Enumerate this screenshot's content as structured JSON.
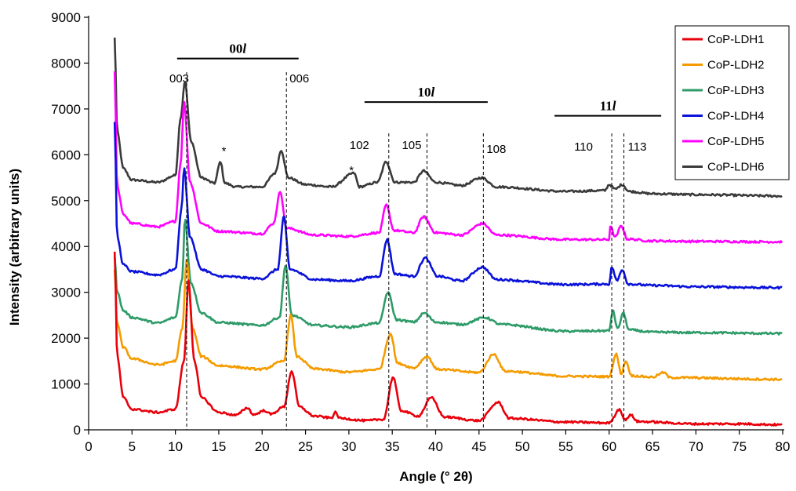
{
  "chart_data": {
    "type": "line",
    "title": "",
    "xlabel": "Angle (° 2θ)",
    "ylabel": "Intensity (arbitrary units)",
    "xlim": [
      0,
      80
    ],
    "ylim": [
      0,
      9000
    ],
    "x_ticks": [
      0,
      5,
      10,
      15,
      20,
      25,
      30,
      35,
      40,
      45,
      50,
      55,
      60,
      65,
      70,
      75,
      80
    ],
    "y_ticks": [
      0,
      1000,
      2000,
      3000,
      4000,
      5000,
      6000,
      7000,
      8000,
      9000
    ],
    "grid": false,
    "legend_position": "top-right",
    "series": [
      {
        "name": "CoP-LDH1",
        "color": "#e8000b",
        "baseline": 350,
        "edge": 3900,
        "points": [
          [
            3,
            3900
          ],
          [
            3.3,
            1600
          ],
          [
            4,
            700
          ],
          [
            5,
            450
          ],
          [
            8,
            380
          ],
          [
            10,
            450
          ],
          [
            11,
            1500
          ],
          [
            11.5,
            3250
          ],
          [
            12.2,
            1500
          ],
          [
            13,
            700
          ],
          [
            15,
            380
          ],
          [
            17,
            320
          ],
          [
            18.3,
            480
          ],
          [
            19,
            330
          ],
          [
            20.3,
            420
          ],
          [
            21,
            340
          ],
          [
            22.5,
            500
          ],
          [
            23.4,
            1280
          ],
          [
            24.3,
            500
          ],
          [
            26,
            300
          ],
          [
            28,
            260
          ],
          [
            28.4,
            380
          ],
          [
            29,
            250
          ],
          [
            32,
            200
          ],
          [
            34,
            230
          ],
          [
            35.1,
            1150
          ],
          [
            36,
            420
          ],
          [
            38,
            300
          ],
          [
            39.5,
            700
          ],
          [
            41,
            280
          ],
          [
            45,
            200
          ],
          [
            47.2,
            600
          ],
          [
            48.5,
            250
          ],
          [
            55,
            170
          ],
          [
            60,
            150
          ],
          [
            61.2,
            450
          ],
          [
            61.8,
            220
          ],
          [
            62.5,
            320
          ],
          [
            63.3,
            180
          ],
          [
            70,
            130
          ],
          [
            75,
            130
          ],
          [
            80,
            110
          ]
        ],
        "spikes": [
          [
            23.5,
            1.0
          ]
        ]
      },
      {
        "name": "CoP-LDH2",
        "color": "#f59b00",
        "baseline": 1420,
        "edge": 3900,
        "points": [
          [
            3,
            3500
          ],
          [
            3.3,
            2300
          ],
          [
            4,
            1800
          ],
          [
            5,
            1550
          ],
          [
            8,
            1420
          ],
          [
            10,
            1500
          ],
          [
            10.8,
            2200
          ],
          [
            11.3,
            3700
          ],
          [
            12,
            2200
          ],
          [
            13,
            1600
          ],
          [
            15,
            1400
          ],
          [
            20,
            1320
          ],
          [
            22.5,
            1500
          ],
          [
            23.3,
            2500
          ],
          [
            24,
            1600
          ],
          [
            26,
            1330
          ],
          [
            30,
            1260
          ],
          [
            33.5,
            1320
          ],
          [
            34.8,
            2100
          ],
          [
            35.6,
            1450
          ],
          [
            37.5,
            1350
          ],
          [
            39,
            1600
          ],
          [
            40.2,
            1320
          ],
          [
            45,
            1250
          ],
          [
            46.7,
            1650
          ],
          [
            48,
            1280
          ],
          [
            55,
            1170
          ],
          [
            60,
            1160
          ],
          [
            60.8,
            1650
          ],
          [
            61.4,
            1220
          ],
          [
            61.9,
            1500
          ],
          [
            62.6,
            1180
          ],
          [
            65,
            1150
          ],
          [
            66.3,
            1250
          ],
          [
            67,
            1140
          ],
          [
            80,
            1100
          ]
        ]
      },
      {
        "name": "CoP-LDH3",
        "color": "#2e9b68",
        "baseline": 2330,
        "edge": 3900,
        "points": [
          [
            3,
            3800
          ],
          [
            3.3,
            3000
          ],
          [
            4,
            2600
          ],
          [
            5,
            2450
          ],
          [
            8,
            2330
          ],
          [
            10,
            2450
          ],
          [
            10.8,
            3300
          ],
          [
            11.1,
            4600
          ],
          [
            11.8,
            3200
          ],
          [
            13,
            2550
          ],
          [
            15,
            2340
          ],
          [
            20,
            2280
          ],
          [
            22,
            2450
          ],
          [
            22.7,
            3600
          ],
          [
            23.4,
            2500
          ],
          [
            26,
            2280
          ],
          [
            30,
            2240
          ],
          [
            33.5,
            2330
          ],
          [
            34.5,
            3000
          ],
          [
            35.5,
            2400
          ],
          [
            37.5,
            2350
          ],
          [
            38.7,
            2550
          ],
          [
            40,
            2350
          ],
          [
            43,
            2300
          ],
          [
            45.7,
            2450
          ],
          [
            47.5,
            2300
          ],
          [
            55,
            2150
          ],
          [
            60,
            2160
          ],
          [
            60.4,
            2600
          ],
          [
            61,
            2200
          ],
          [
            61.6,
            2550
          ],
          [
            62.3,
            2180
          ],
          [
            65,
            2130
          ],
          [
            70,
            2120
          ],
          [
            80,
            2100
          ]
        ]
      },
      {
        "name": "CoP-LDH4",
        "color": "#0a12d9",
        "baseline": 3380,
        "edge": 6700,
        "points": [
          [
            3,
            6700
          ],
          [
            3.3,
            4200
          ],
          [
            4,
            3600
          ],
          [
            5,
            3450
          ],
          [
            8,
            3380
          ],
          [
            10,
            3500
          ],
          [
            10.7,
            4800
          ],
          [
            11,
            5700
          ],
          [
            11.7,
            4200
          ],
          [
            13,
            3500
          ],
          [
            15,
            3350
          ],
          [
            20,
            3300
          ],
          [
            21.8,
            3500
          ],
          [
            22.5,
            4650
          ],
          [
            23.2,
            3500
          ],
          [
            26,
            3280
          ],
          [
            30,
            3250
          ],
          [
            33.5,
            3350
          ],
          [
            34.4,
            4150
          ],
          [
            35.3,
            3400
          ],
          [
            37.5,
            3350
          ],
          [
            38.8,
            3750
          ],
          [
            40.2,
            3350
          ],
          [
            43,
            3250
          ],
          [
            45.4,
            3550
          ],
          [
            47,
            3280
          ],
          [
            55,
            3170
          ],
          [
            60,
            3180
          ],
          [
            60.3,
            3550
          ],
          [
            60.9,
            3250
          ],
          [
            61.5,
            3500
          ],
          [
            62.2,
            3180
          ],
          [
            65,
            3150
          ],
          [
            70,
            3120
          ],
          [
            80,
            3100
          ]
        ]
      },
      {
        "name": "CoP-LDH5",
        "color": "#ff00ff",
        "baseline": 4430,
        "edge": 7800,
        "points": [
          [
            3,
            7800
          ],
          [
            3.3,
            5300
          ],
          [
            4,
            4700
          ],
          [
            5,
            4500
          ],
          [
            8,
            4430
          ],
          [
            10,
            4550
          ],
          [
            10.6,
            5800
          ],
          [
            11,
            7150
          ],
          [
            11.7,
            5400
          ],
          [
            13,
            4500
          ],
          [
            15,
            4330
          ],
          [
            20,
            4280
          ],
          [
            21.3,
            4500
          ],
          [
            22.1,
            5200
          ],
          [
            22.8,
            4400
          ],
          [
            26,
            4250
          ],
          [
            30,
            4220
          ],
          [
            33.5,
            4300
          ],
          [
            34.3,
            4900
          ],
          [
            35.2,
            4350
          ],
          [
            37.5,
            4300
          ],
          [
            38.6,
            4650
          ],
          [
            40,
            4300
          ],
          [
            43,
            4250
          ],
          [
            45.4,
            4500
          ],
          [
            47,
            4250
          ],
          [
            55,
            4150
          ],
          [
            60,
            4150
          ],
          [
            60.1,
            4450
          ],
          [
            60.7,
            4200
          ],
          [
            61.4,
            4450
          ],
          [
            62.1,
            4160
          ],
          [
            65,
            4120
          ],
          [
            70,
            4110
          ],
          [
            80,
            4100
          ]
        ]
      },
      {
        "name": "CoP-LDH6",
        "color": "#3a3a3a",
        "baseline": 5400,
        "edge": 8550,
        "points": [
          [
            3,
            8550
          ],
          [
            3.3,
            6500
          ],
          [
            4,
            5700
          ],
          [
            5,
            5450
          ],
          [
            8,
            5400
          ],
          [
            10,
            5550
          ],
          [
            10.6,
            6800
          ],
          [
            11.1,
            7600
          ],
          [
            11.8,
            6300
          ],
          [
            13,
            5500
          ],
          [
            14.5,
            5380
          ],
          [
            15.2,
            5850
          ],
          [
            15.7,
            5380
          ],
          [
            17,
            5300
          ],
          [
            20,
            5300
          ],
          [
            21.5,
            5600
          ],
          [
            22.2,
            6100
          ],
          [
            23,
            5500
          ],
          [
            25,
            5350
          ],
          [
            28,
            5300
          ],
          [
            30.6,
            5600
          ],
          [
            31.2,
            5300
          ],
          [
            33.3,
            5400
          ],
          [
            34.3,
            5850
          ],
          [
            35.3,
            5400
          ],
          [
            37.5,
            5400
          ],
          [
            38.6,
            5650
          ],
          [
            40,
            5400
          ],
          [
            43,
            5330
          ],
          [
            45.3,
            5500
          ],
          [
            47,
            5300
          ],
          [
            55,
            5200
          ],
          [
            59.5,
            5220
          ],
          [
            60,
            5350
          ],
          [
            60.7,
            5250
          ],
          [
            61.5,
            5350
          ],
          [
            62.3,
            5200
          ],
          [
            65,
            5150
          ],
          [
            70,
            5130
          ],
          [
            80,
            5100
          ]
        ]
      }
    ],
    "reference_lines": [
      {
        "x": 11.3,
        "label": "003"
      },
      {
        "x": 22.8,
        "label": "006"
      },
      {
        "x": 34.6,
        "label": "102"
      },
      {
        "x": 39.0,
        "label": "105"
      },
      {
        "x": 45.5,
        "label": "108"
      },
      {
        "x": 60.3,
        "label": "110"
      },
      {
        "x": 61.7,
        "label": "113"
      }
    ],
    "groups": [
      {
        "label": "00l",
        "x_start": 10.2,
        "x_end": 24.2,
        "y": 8100
      },
      {
        "label": "10l",
        "x_start": 31.8,
        "x_end": 46.0,
        "y": 7150
      },
      {
        "label": "11l",
        "x_start": 53.7,
        "x_end": 66.0,
        "y": 6850
      }
    ],
    "annotations": [
      {
        "text": "*",
        "x": 15.6,
        "y": 6000
      },
      {
        "text": "*",
        "x": 30.3,
        "y": 5580
      }
    ]
  }
}
